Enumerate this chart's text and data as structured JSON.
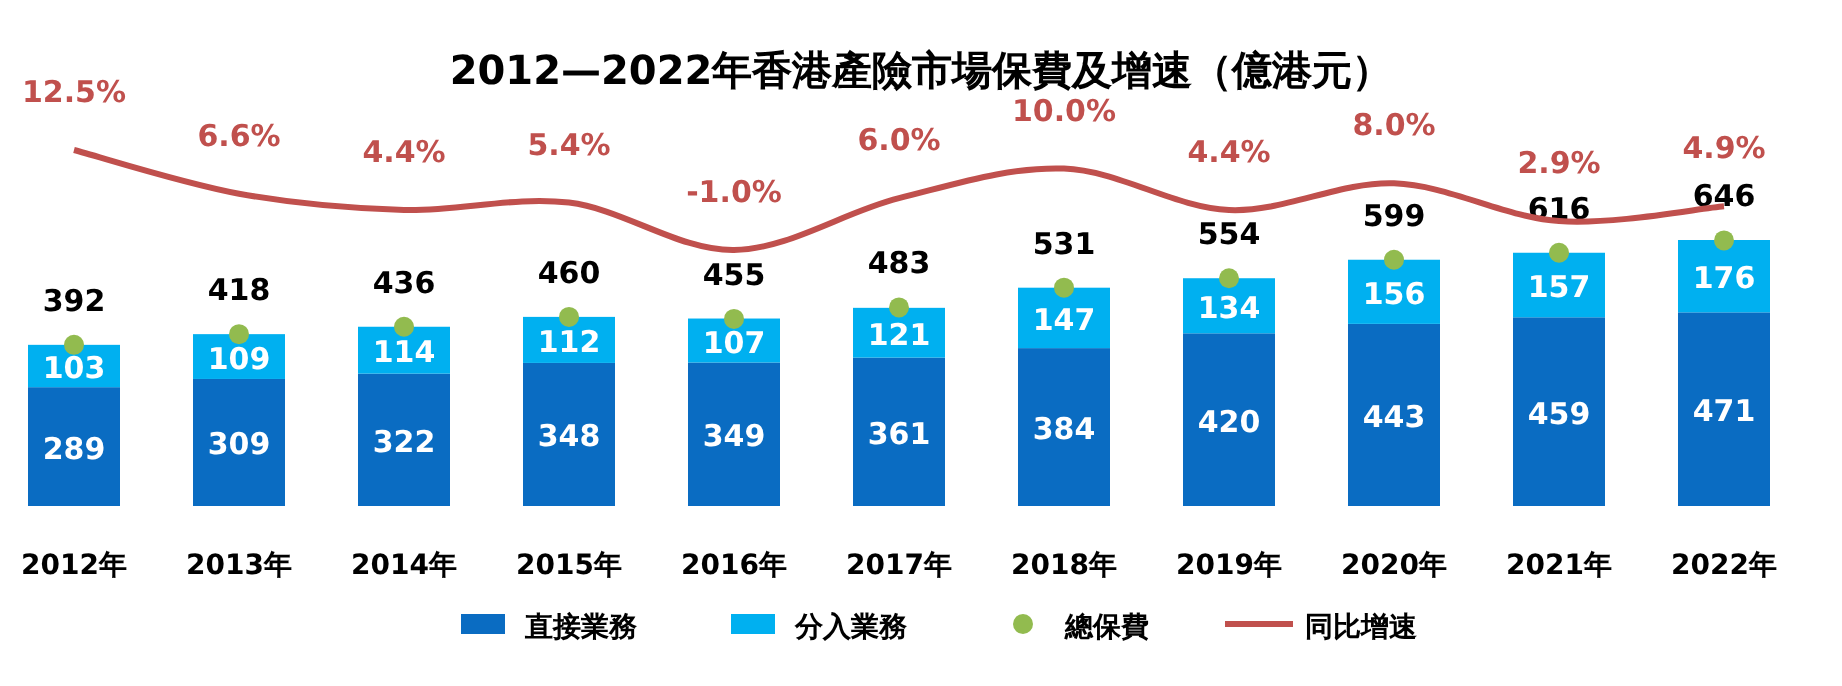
{
  "chart_data": {
    "type": "bar",
    "title": "2012—2022年香港產險市場保費及增速（億港元）",
    "stacked": true,
    "data_labels": true,
    "legend": "bottom",
    "categories": [
      "2012年",
      "2013年",
      "2014年",
      "2015年",
      "2016年",
      "2017年",
      "2018年",
      "2019年",
      "2020年",
      "2021年",
      "2022年"
    ],
    "series": [
      {
        "name": "直接業務",
        "color": "#0a6cc2",
        "values": [
          289,
          309,
          322,
          348,
          349,
          361,
          384,
          420,
          443,
          459,
          471
        ]
      },
      {
        "name": "分入業務",
        "color": "#00b0f0",
        "values": [
          103,
          109,
          114,
          112,
          107,
          121,
          147,
          134,
          156,
          157,
          176
        ]
      },
      {
        "name": "總保費",
        "type": "scatter",
        "marker": "circle",
        "color": "#92bb4f",
        "values": [
          392,
          418,
          436,
          460,
          455,
          483,
          531,
          554,
          599,
          616,
          646
        ]
      },
      {
        "name": "同比增速",
        "type": "line",
        "axis": "y2",
        "color": "#c0504d",
        "values": [
          12.5,
          6.6,
          4.4,
          5.4,
          -1.0,
          6.0,
          10.0,
          4.4,
          8.0,
          2.9,
          4.9
        ],
        "value_labels": [
          "12.5%",
          "6.6%",
          "4.4%",
          "5.4%",
          "-1.0%",
          "6.0%",
          "10.0%",
          "4.4%",
          "8.0%",
          "2.9%",
          "4.9%"
        ]
      }
    ]
  }
}
